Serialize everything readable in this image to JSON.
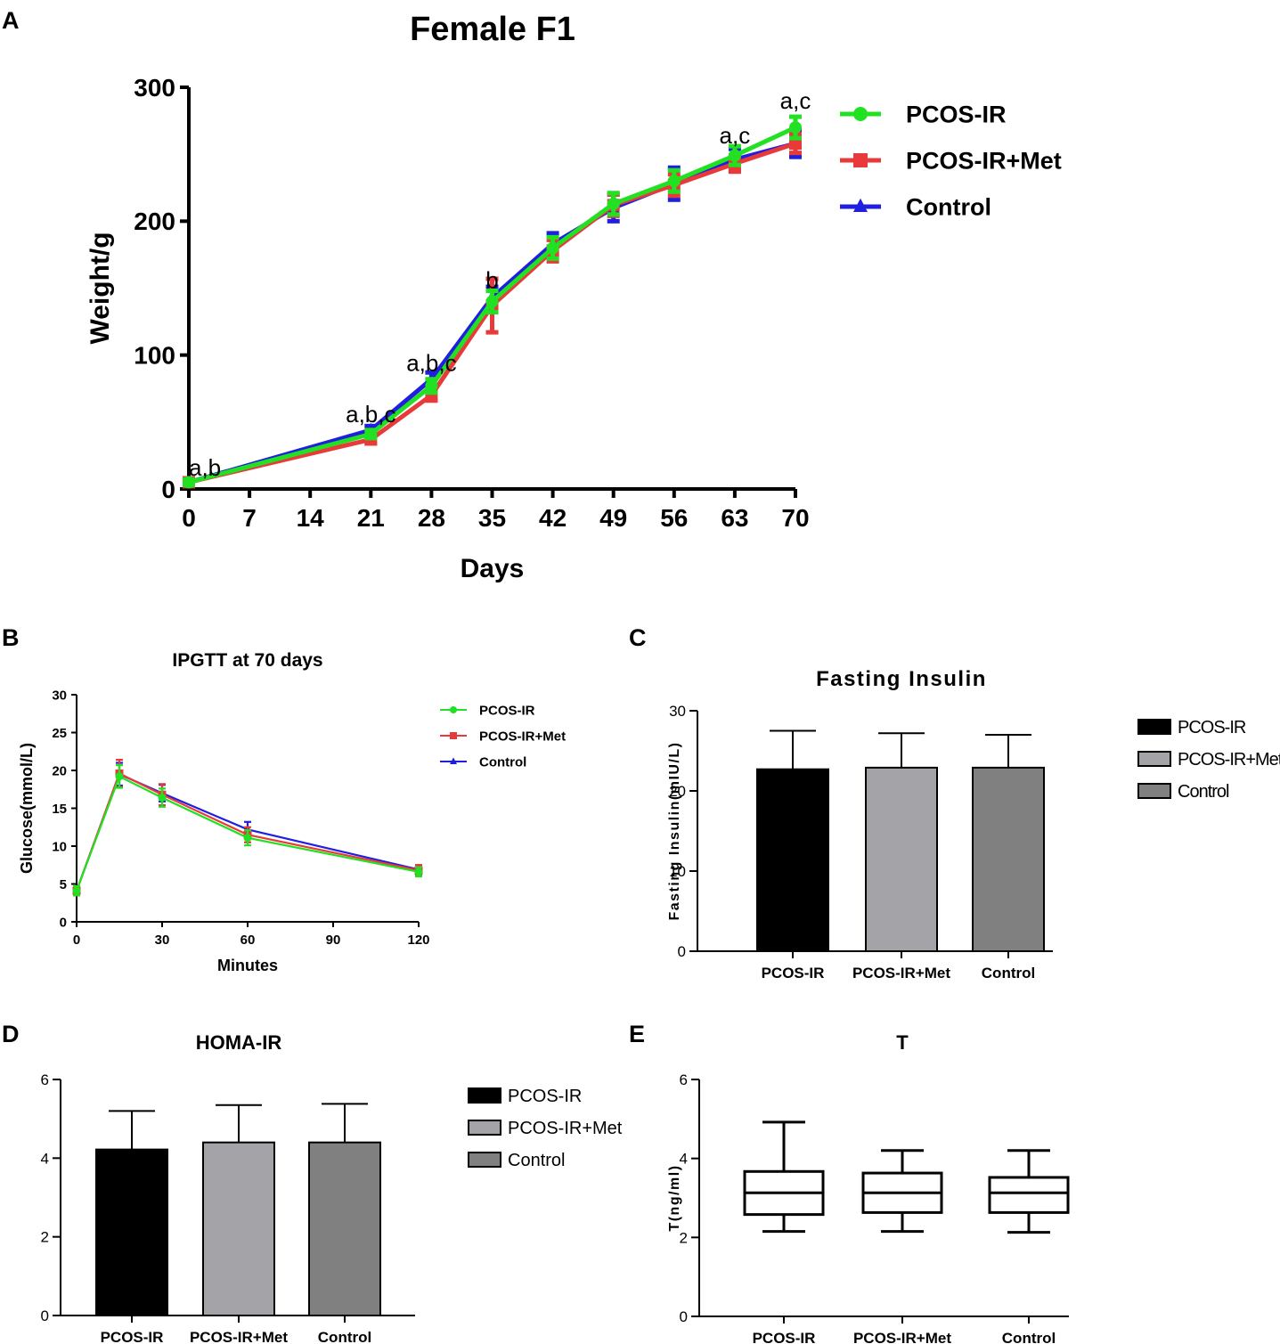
{
  "panels": {
    "A": {
      "letter": "A",
      "chart_data": {
        "type": "line",
        "title": "Female F1",
        "xlabel": "Days",
        "ylabel": "Weight/g",
        "x": [
          0,
          7,
          14,
          21,
          28,
          35,
          42,
          49,
          56,
          63,
          70
        ],
        "x_ticks": [
          0,
          7,
          14,
          21,
          28,
          35,
          42,
          49,
          56,
          63,
          70
        ],
        "y_ticks": [
          0,
          100,
          200,
          300
        ],
        "xlim": [
          0,
          70
        ],
        "ylim": [
          0,
          300
        ],
        "series": [
          {
            "name": "Control",
            "color": "#1f1fe0",
            "marker": "triangle",
            "x": [
              0,
              21,
              28,
              35,
              42,
              49,
              56,
              63,
              70
            ],
            "values": [
              5,
              44,
              82,
              143,
              183,
              210,
              228,
              246,
              258
            ],
            "errors": [
              2,
              3,
              5,
              8,
              8,
              10,
              12,
              8,
              10
            ]
          },
          {
            "name": "PCOS-IR+Met",
            "color": "#e83a3a",
            "marker": "square",
            "x": [
              0,
              21,
              28,
              35,
              42,
              49,
              56,
              63,
              70
            ],
            "values": [
              5,
              37,
              70,
              137,
              178,
              212,
              227,
              243,
              258
            ],
            "errors": [
              2,
              3,
              4,
              20,
              8,
              8,
              8,
              6,
              7
            ]
          },
          {
            "name": "PCOS-IR",
            "color": "#22e022",
            "marker": "circle",
            "x": [
              0,
              21,
              28,
              35,
              42,
              49,
              56,
              63,
              70
            ],
            "values": [
              5,
              41,
              77,
              140,
              180,
              213,
              230,
              249,
              270
            ],
            "errors": [
              2,
              3,
              5,
              8,
              8,
              8,
              8,
              7,
              8
            ]
          }
        ],
        "legend": [
          "PCOS-IR",
          "PCOS-IR+Met",
          "Control"
        ],
        "legend_position": "top-right",
        "annotations": [
          {
            "x": 0,
            "y": 10,
            "text": "a,b"
          },
          {
            "x": 21,
            "y": 50,
            "text": "a,b,c"
          },
          {
            "x": 28,
            "y": 88,
            "text": "a,b,c"
          },
          {
            "x": 35,
            "y": 150,
            "text": "b"
          },
          {
            "x": 63,
            "y": 258,
            "text": "a,c"
          },
          {
            "x": 70,
            "y": 284,
            "text": "a,c"
          }
        ]
      }
    },
    "B": {
      "letter": "B",
      "chart_data": {
        "type": "line",
        "title": "IPGTT at 70 days",
        "xlabel": "Minutes",
        "ylabel": "Glucose(mmol/L)",
        "x": [
          0,
          15,
          30,
          60,
          120
        ],
        "x_ticks": [
          0,
          30,
          60,
          90,
          120
        ],
        "y_ticks": [
          0,
          5,
          10,
          15,
          20,
          25,
          30
        ],
        "xlim": [
          0,
          120
        ],
        "ylim": [
          0,
          30
        ],
        "series": [
          {
            "name": "Control",
            "color": "#1f1fe0",
            "marker": "triangle",
            "values": [
              4.1,
              19.5,
              17.0,
              12.2,
              6.9
            ],
            "errors": [
              0.6,
              1.5,
              1.1,
              1.0,
              0.6
            ]
          },
          {
            "name": "PCOS-IR+Met",
            "color": "#e83a3a",
            "marker": "square",
            "values": [
              4.1,
              19.6,
              16.8,
              11.5,
              6.8
            ],
            "errors": [
              0.6,
              1.8,
              1.4,
              1.0,
              0.7
            ]
          },
          {
            "name": "PCOS-IR",
            "color": "#22e022",
            "marker": "circle",
            "values": [
              4.1,
              19.2,
              16.4,
              11.1,
              6.6
            ],
            "errors": [
              0.6,
              1.5,
              1.2,
              1.0,
              0.6
            ]
          }
        ],
        "legend": [
          "PCOS-IR",
          "PCOS-IR+Met",
          "Control"
        ],
        "legend_position": "top-right"
      }
    },
    "C": {
      "letter": "C",
      "chart_data": {
        "type": "bar",
        "title": "Fasting Insulin",
        "xlabel": "",
        "ylabel": "Fasting Insulin(mIU/L)",
        "categories": [
          "PCOS-IR",
          "PCOS-IR+Met",
          "Control"
        ],
        "values": [
          22.7,
          22.9,
          22.9
        ],
        "errors": [
          4.8,
          4.3,
          4.1
        ],
        "colors": [
          "#000000",
          "#a3a3a8",
          "#808080"
        ],
        "y_ticks": [
          0,
          10,
          20,
          30
        ],
        "ylim": [
          0,
          30
        ],
        "legend": [
          "PCOS-IR",
          "PCOS-IR+Met",
          "Control"
        ],
        "legend_position": "top-right"
      }
    },
    "D": {
      "letter": "D",
      "chart_data": {
        "type": "bar",
        "title": "HOMA-IR",
        "xlabel": "",
        "ylabel": "",
        "categories": [
          "PCOS-IR",
          "PCOS-IR+Met",
          "Control"
        ],
        "values": [
          4.22,
          4.4,
          4.4
        ],
        "errors": [
          0.98,
          0.95,
          0.98
        ],
        "colors": [
          "#000000",
          "#a3a3a8",
          "#808080"
        ],
        "y_ticks": [
          0,
          2,
          4,
          6
        ],
        "ylim": [
          0,
          6
        ],
        "legend": [
          "PCOS-IR",
          "PCOS-IR+Met",
          "Control"
        ],
        "legend_position": "right"
      }
    },
    "E": {
      "letter": "E",
      "chart_data": {
        "type": "box",
        "title": "T",
        "xlabel": "",
        "ylabel": "T(ng/ml)",
        "categories": [
          "PCOS-IR",
          "PCOS-IR+Met",
          "Control"
        ],
        "boxes": [
          {
            "min": 2.15,
            "q1": 2.58,
            "median": 3.13,
            "q3": 3.67,
            "max": 4.92
          },
          {
            "min": 2.15,
            "q1": 2.63,
            "median": 3.13,
            "q3": 3.63,
            "max": 4.2
          },
          {
            "min": 2.13,
            "q1": 2.63,
            "median": 3.13,
            "q3": 3.52,
            "max": 4.2
          }
        ],
        "y_ticks": [
          0,
          2,
          4,
          6
        ],
        "ylim": [
          0,
          6
        ]
      }
    }
  }
}
